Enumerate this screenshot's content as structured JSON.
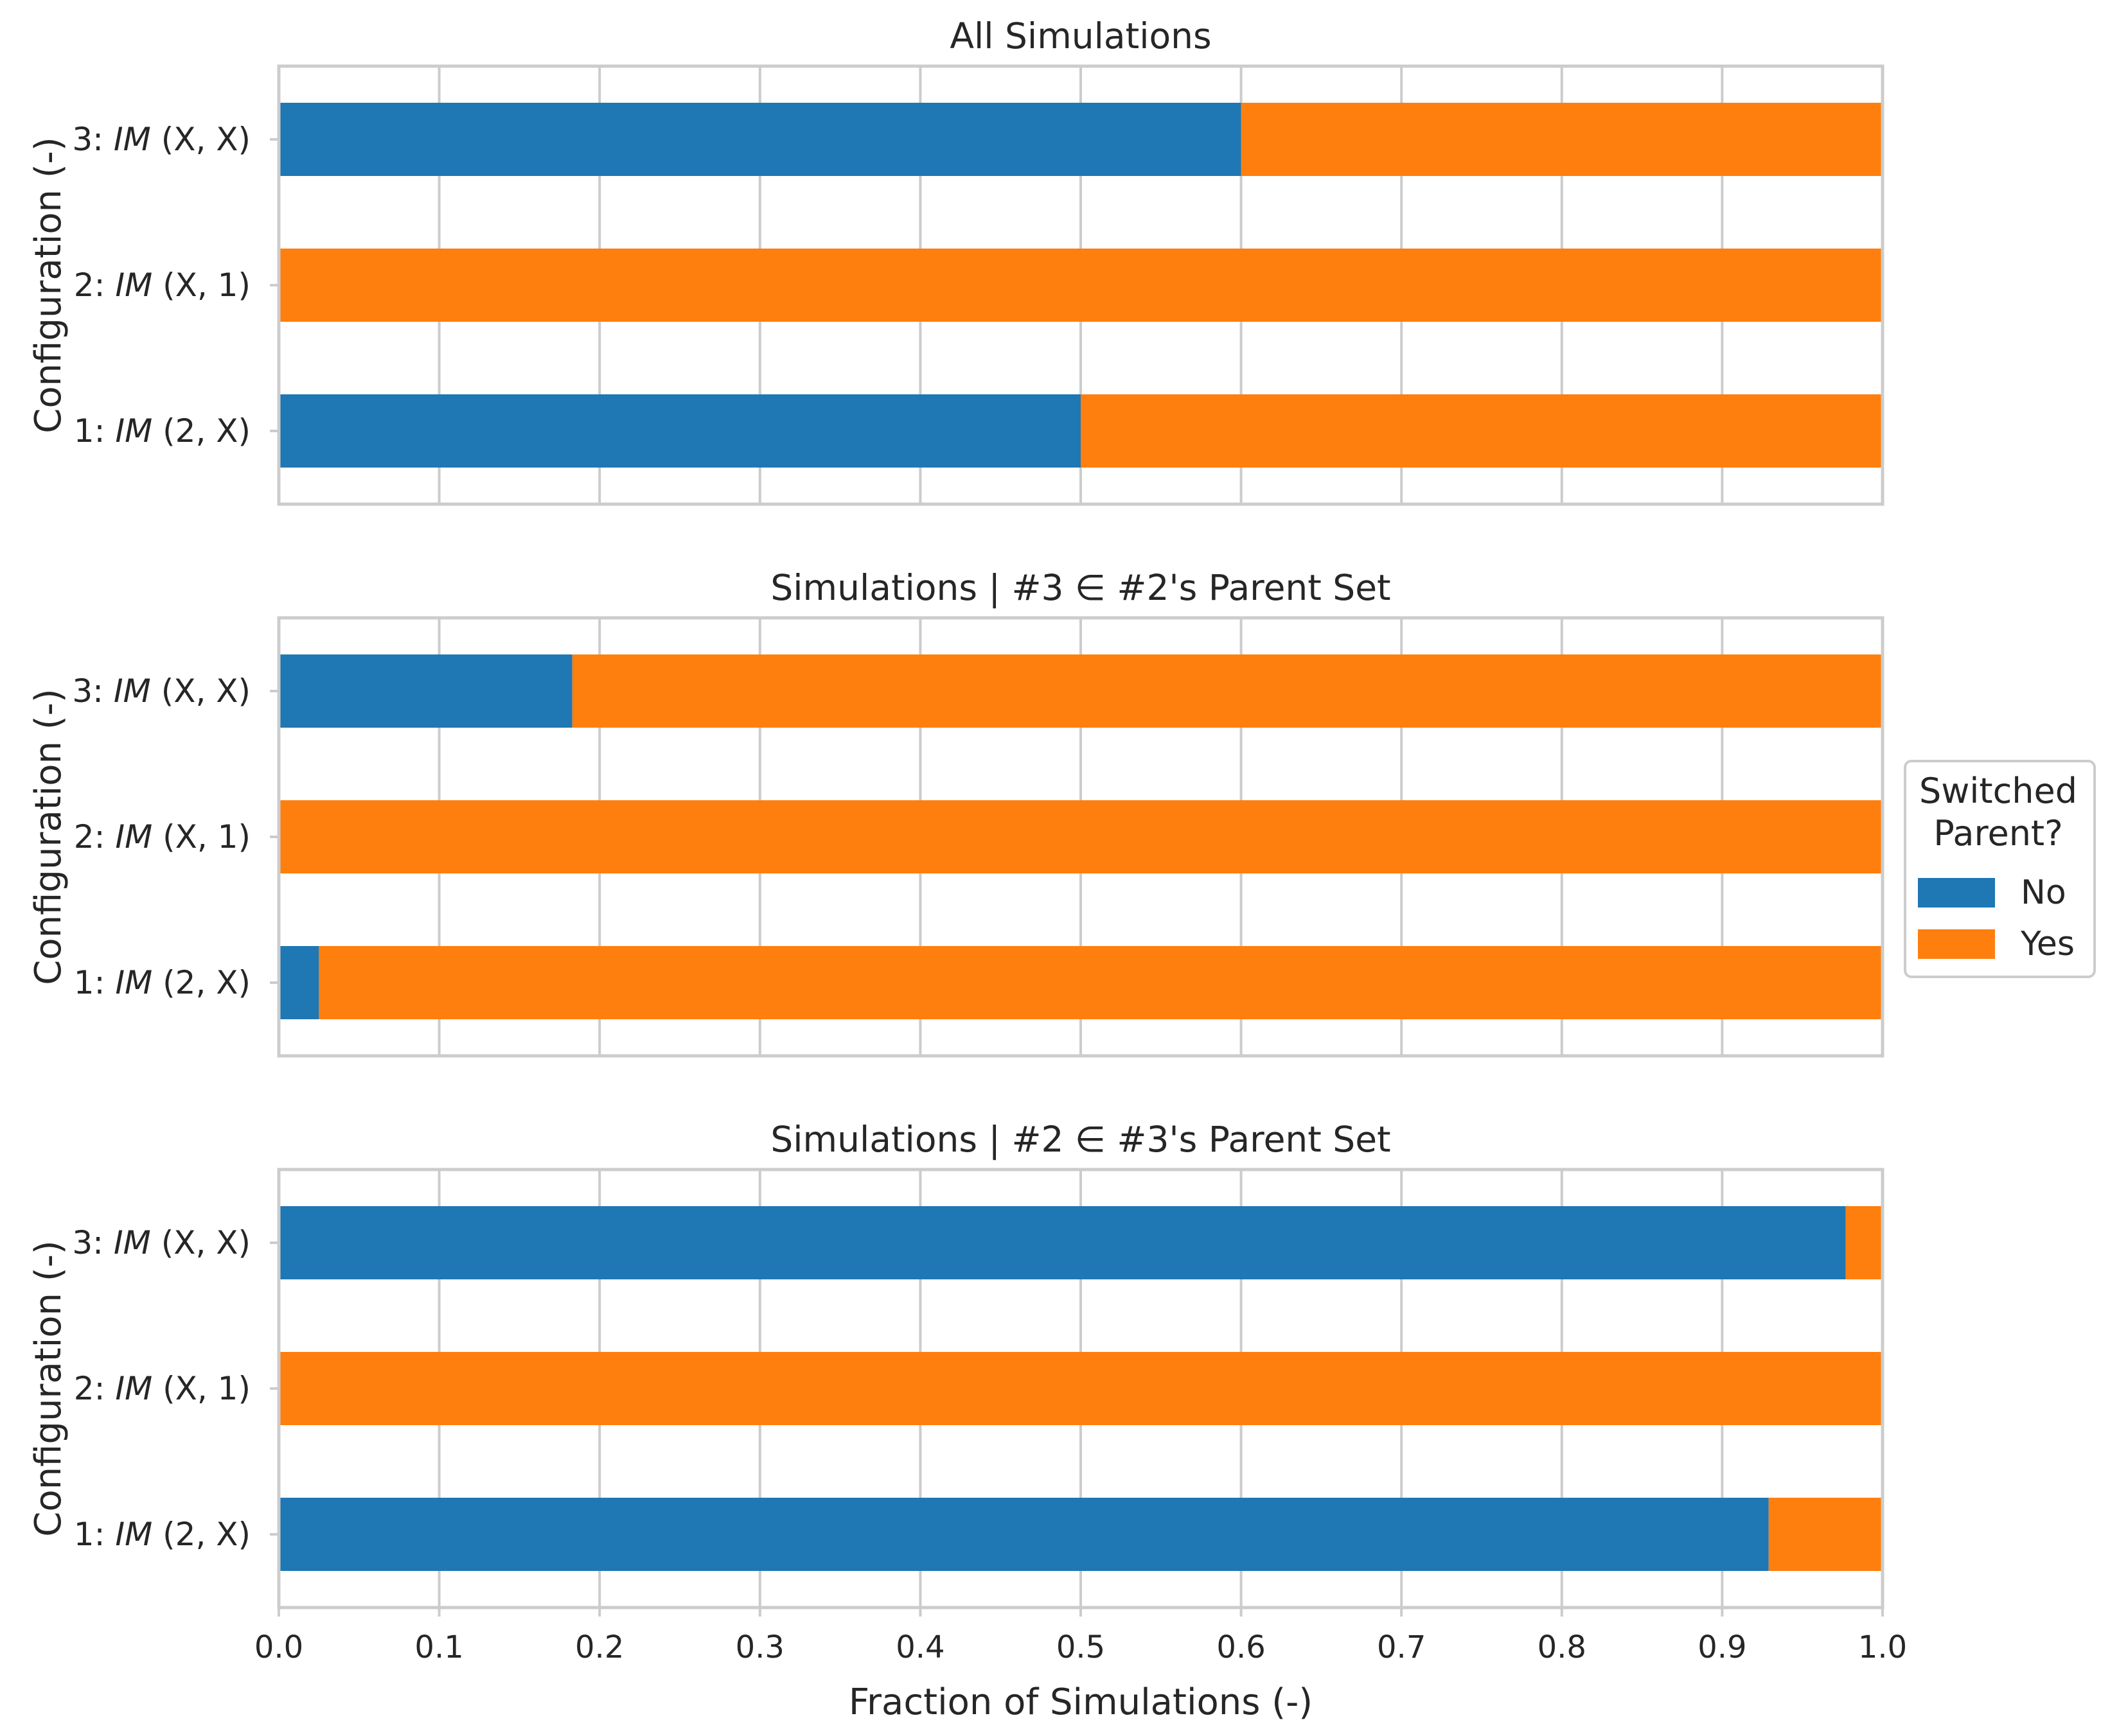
{
  "chart_data": {
    "type": "bar",
    "orientation": "horizontal",
    "stacked": true,
    "categories": [
      "3: IM (X, X)",
      "2: IM (X, 1)",
      "1: IM (2, X)"
    ],
    "category_parts": [
      {
        "prefix": "3: ",
        "italic": "IM",
        "suffix": " (X, X)"
      },
      {
        "prefix": "2: ",
        "italic": "IM",
        "suffix": " (X, 1)"
      },
      {
        "prefix": "1: ",
        "italic": "IM",
        "suffix": " (2, X)"
      }
    ],
    "xlabel": "Fraction of Simulations (-)",
    "ylabel": "Configuration (-)",
    "xlim": [
      0.0,
      1.0
    ],
    "xticks": [
      "0.0",
      "0.1",
      "0.2",
      "0.3",
      "0.4",
      "0.5",
      "0.6",
      "0.7",
      "0.8",
      "0.9",
      "1.0"
    ],
    "grid": true,
    "legend": {
      "title_lines": [
        "Switched",
        "Parent?"
      ],
      "placement": "right",
      "entries": [
        {
          "label": "No",
          "color": "#1f77b4"
        },
        {
          "label": "Yes",
          "color": "#ff7f0e"
        }
      ]
    },
    "panels": [
      {
        "title": "All Simulations",
        "series": [
          {
            "name": "No",
            "values": [
              0.6,
              0.0,
              0.5
            ]
          },
          {
            "name": "Yes",
            "values": [
              0.4,
              1.0,
              0.5
            ]
          }
        ]
      },
      {
        "title": "Simulations | #3 ∈ #2's Parent Set",
        "series": [
          {
            "name": "No",
            "values": [
              0.183,
              0.0,
              0.025
            ]
          },
          {
            "name": "Yes",
            "values": [
              0.817,
              1.0,
              0.975
            ]
          }
        ]
      },
      {
        "title": "Simulations | #2 ∈ #3's Parent Set",
        "series": [
          {
            "name": "No",
            "values": [
              0.977,
              0.0,
              0.929
            ]
          },
          {
            "name": "Yes",
            "values": [
              0.023,
              1.0,
              0.071
            ]
          }
        ]
      }
    ]
  }
}
